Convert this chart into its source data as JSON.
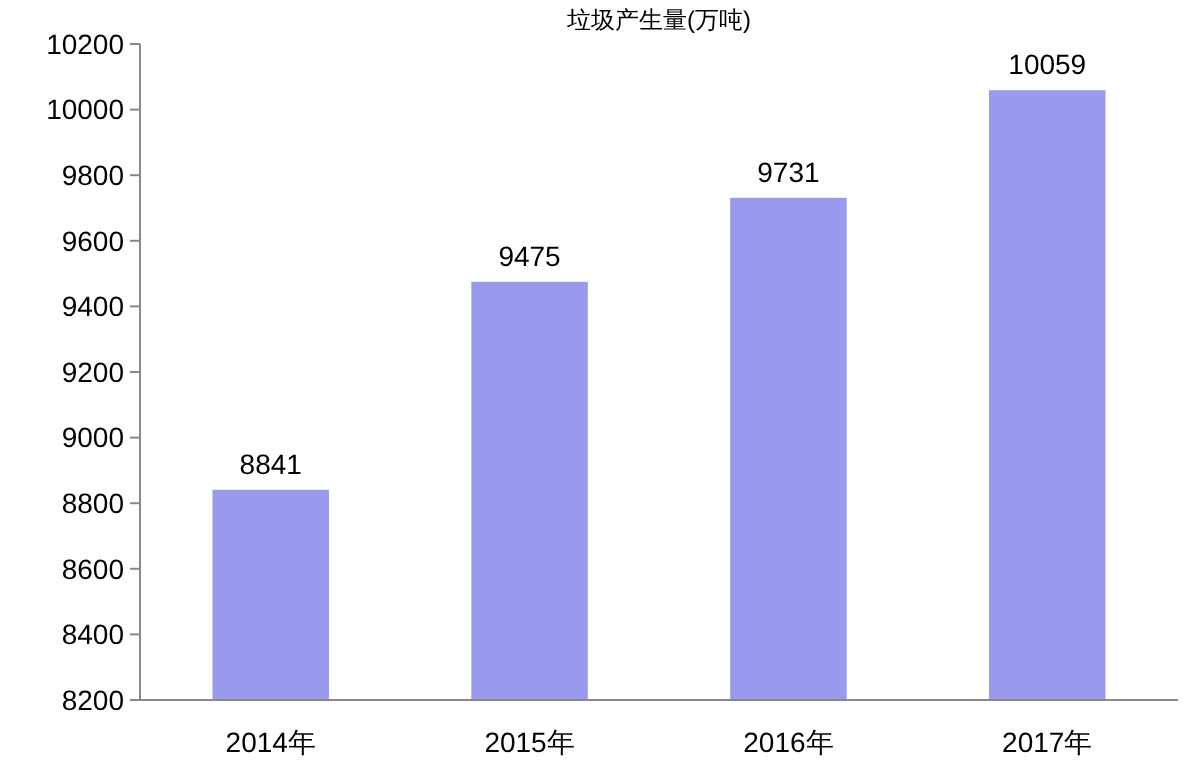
{
  "chart_data": {
    "type": "bar",
    "title": "垃圾产生量(万吨)",
    "categories": [
      "2014年",
      "2015年",
      "2016年",
      "2017年"
    ],
    "values": [
      8841,
      9475,
      9731,
      10059
    ],
    "color": "#9999ee",
    "ylim": [
      8200,
      10200
    ],
    "yticks": [
      8200,
      8400,
      8600,
      8800,
      9000,
      9200,
      9400,
      9600,
      9800,
      10000,
      10200
    ],
    "grid": false,
    "data_labels": true
  }
}
